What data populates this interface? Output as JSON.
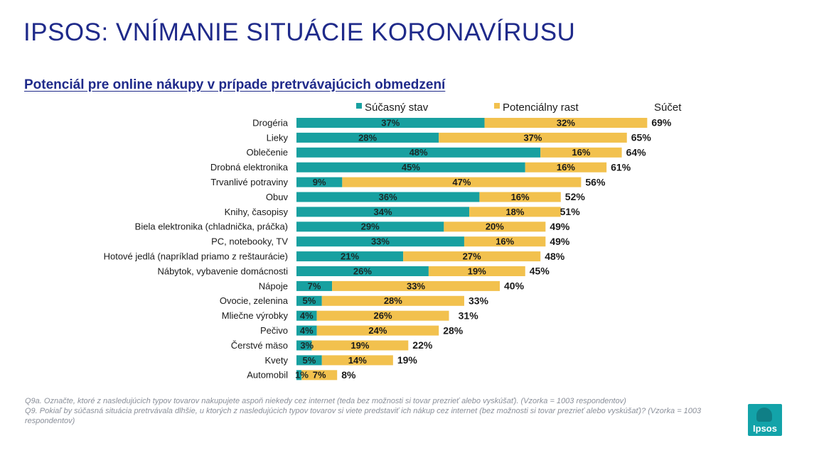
{
  "page": {
    "title": "IPSOS: VNÍMANIE SITUÁCIE KORONAVÍRUSU",
    "subtitle": "Potenciál pre online nákupy v prípade pretrvávajúcich obmedzení"
  },
  "colors": {
    "current": "#18a0a0",
    "potential": "#f2c14e",
    "title": "#1f2a8a",
    "text": "#1a1a1a"
  },
  "chart_data": {
    "type": "bar",
    "orientation": "horizontal",
    "stacked": true,
    "categories": [
      "Drogéria",
      "Lieky",
      "Oblečenie",
      "Drobná elektronika",
      "Trvanlivé potraviny",
      "Obuv",
      "Knihy, časopisy",
      "Biela elektronika (chladnička, práčka)",
      "PC, notebooky, TV",
      "Hotové jedlá (napríklad priamo z reštaurácie)",
      "Nábytok, vybavenie domácnosti",
      "Nápoje",
      "Ovocie, zelenina",
      "Mliečne výrobky",
      "Pečivo",
      "Čerstvé mäso",
      "Kvety",
      "Automobil"
    ],
    "series": [
      {
        "name": "Súčasný stav",
        "values": [
          37,
          28,
          48,
          45,
          9,
          36,
          34,
          29,
          33,
          21,
          26,
          7,
          5,
          4,
          4,
          3,
          5,
          1
        ]
      },
      {
        "name": "Potenciálny rast",
        "values": [
          32,
          37,
          16,
          16,
          47,
          16,
          18,
          20,
          16,
          27,
          19,
          33,
          28,
          26,
          24,
          19,
          14,
          7
        ]
      }
    ],
    "totals_label": "Súčet",
    "totals": [
      69,
      65,
      64,
      61,
      56,
      52,
      51,
      49,
      49,
      48,
      45,
      40,
      33,
      31,
      28,
      22,
      19,
      8
    ],
    "value_suffix": "%",
    "legend_position": "top",
    "xlim": [
      0,
      100
    ],
    "gridlines": false
  },
  "footnotes": [
    "Q9a. Označte, ktoré z nasledujúcich typov tovarov nakupujete aspoň niekedy cez internet (teda bez možnosti si tovar prezrieť alebo vyskúšať). (Vzorka = 1003 respondentov)",
    "Q9. Pokiaľ by súčasná situácia pretrvávala dlhšie, u ktorých z nasledujúcich typov tovarov si viete predstaviť ich nákup cez internet (bez možnosti si tovar prezrieť alebo vyskúšať)? (Vzorka = 1003 respondentov)"
  ],
  "logo": {
    "text": "Ipsos"
  }
}
